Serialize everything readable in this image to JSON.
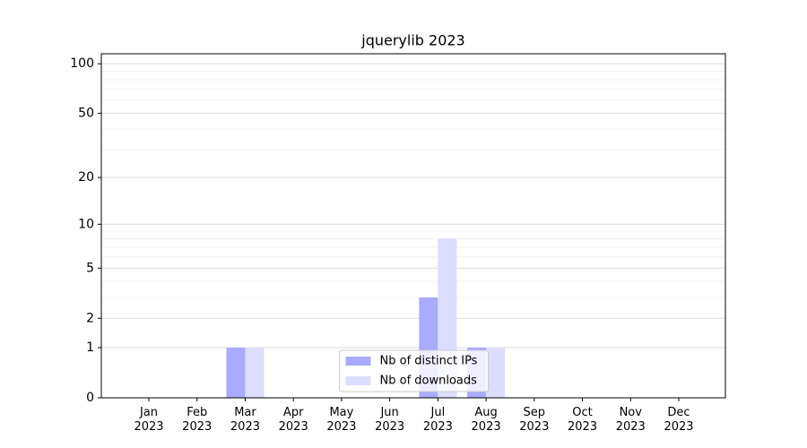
{
  "chart_data": {
    "type": "bar",
    "title": "jquerylib 2023",
    "categories": [
      "Jan\n2023",
      "Feb\n2023",
      "Mar\n2023",
      "Apr\n2023",
      "May\n2023",
      "Jun\n2023",
      "Jul\n2023",
      "Aug\n2023",
      "Sep\n2023",
      "Oct\n2023",
      "Nov\n2023",
      "Dec\n2023"
    ],
    "series": [
      {
        "name": "Nb of distinct IPs",
        "color": "#aaaaff",
        "values": [
          0,
          0,
          1,
          0,
          0,
          0,
          3,
          1,
          0,
          0,
          0,
          0
        ]
      },
      {
        "name": "Nb of downloads",
        "color": "#ddddff",
        "values": [
          0,
          0,
          1,
          0,
          0,
          0,
          8,
          1,
          0,
          0,
          0,
          0
        ]
      }
    ],
    "yscale": "log1p",
    "ylim": [
      0,
      115
    ],
    "yticks": [
      0,
      1,
      2,
      5,
      10,
      20,
      50,
      100
    ],
    "yminorticks": [
      3,
      4,
      6,
      7,
      8,
      9,
      30,
      40,
      60,
      70,
      80,
      90
    ],
    "grid": true,
    "legend": "lower center"
  }
}
